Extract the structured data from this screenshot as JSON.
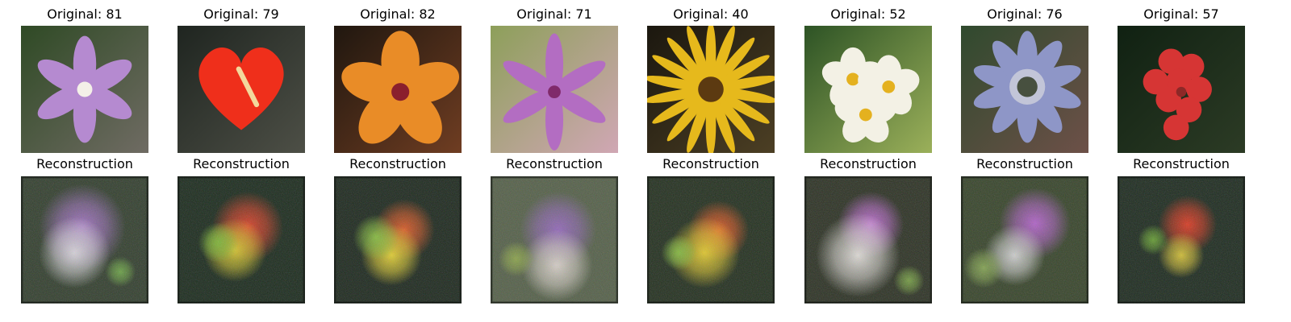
{
  "figure": {
    "columns": [
      {
        "original_title": "Original: 81",
        "recon_title": "Reconstruction",
        "original": {
          "bg": [
            "#2f4a25",
            "#6f6b63"
          ],
          "flower": "#b58ad0",
          "center": "#f4f0e8",
          "kind": "star6"
        },
        "recon": {
          "bg": "#344030",
          "blobs": [
            [
              "#a676c7",
              0.48,
              0.4,
              0.34
            ],
            [
              "#d9d6dc",
              0.42,
              0.6,
              0.28
            ],
            [
              "#6fa54a",
              0.78,
              0.75,
              0.12
            ]
          ]
        }
      },
      {
        "original_title": "Original: 79",
        "recon_title": "Reconstruction",
        "original": {
          "bg": [
            "#1f2520",
            "#4d4f46"
          ],
          "flower": "#ef2f1b",
          "center": "#f3d89c",
          "kind": "heart"
        },
        "recon": {
          "bg": "#1d2c1f",
          "blobs": [
            [
              "#e3442c",
              0.55,
              0.4,
              0.28
            ],
            [
              "#d8c831",
              0.45,
              0.58,
              0.25
            ],
            [
              "#7eb53b",
              0.32,
              0.52,
              0.16
            ]
          ]
        }
      },
      {
        "original_title": "Original: 82",
        "recon_title": "Reconstruction",
        "original": {
          "bg": [
            "#20170f",
            "#6f3d22"
          ],
          "flower": "#e98c27",
          "center": "#8a1f2d",
          "kind": "hibiscus"
        },
        "recon": {
          "bg": "#1f2a20",
          "blobs": [
            [
              "#e05d2a",
              0.55,
              0.42,
              0.24
            ],
            [
              "#e7d336",
              0.45,
              0.62,
              0.24
            ],
            [
              "#88bd43",
              0.33,
              0.48,
              0.18
            ]
          ]
        }
      },
      {
        "original_title": "Original: 71",
        "recon_title": "Reconstruction",
        "original": {
          "bg": [
            "#8d9f5a",
            "#d0a7b4"
          ],
          "flower": "#b36dc2",
          "center": "#802a6b",
          "kind": "lily"
        },
        "recon": {
          "bg": "#55604a",
          "blobs": [
            [
              "#9569bd",
              0.53,
              0.42,
              0.3
            ],
            [
              "#d9d1cb",
              0.52,
              0.7,
              0.28
            ],
            [
              "#8da54d",
              0.2,
              0.65,
              0.14
            ]
          ]
        }
      },
      {
        "original_title": "Original: 40",
        "recon_title": "Reconstruction",
        "original": {
          "bg": [
            "#1b170f",
            "#4c3f24"
          ],
          "flower": "#e6b91c",
          "center": "#5c3a11",
          "kind": "daisy"
        },
        "recon": {
          "bg": "#253121",
          "blobs": [
            [
              "#e45c28",
              0.56,
              0.43,
              0.24
            ],
            [
              "#e5cc31",
              0.45,
              0.6,
              0.28
            ],
            [
              "#86bb44",
              0.25,
              0.6,
              0.14
            ]
          ]
        }
      },
      {
        "original_title": "Original: 52",
        "recon_title": "Reconstruction",
        "original": {
          "bg": [
            "#2d5325",
            "#9bb05a"
          ],
          "flower": "#f3f1e5",
          "center": "#e4b11f",
          "kind": "primrose"
        },
        "recon": {
          "bg": "#2e3326",
          "blobs": [
            [
              "#c070d3",
              0.52,
              0.38,
              0.26
            ],
            [
              "#e4e0dd",
              0.42,
              0.62,
              0.33
            ],
            [
              "#79a148",
              0.82,
              0.82,
              0.12
            ]
          ]
        }
      },
      {
        "original_title": "Original: 76",
        "recon_title": "Reconstruction",
        "original": {
          "bg": [
            "#304a2e",
            "#6d5048"
          ],
          "flower": "#8e96c7",
          "center": "#47503f",
          "kind": "passion"
        },
        "recon": {
          "bg": "#38452c",
          "blobs": [
            [
              "#b665cf",
              0.58,
              0.37,
              0.28
            ],
            [
              "#d4d3d5",
              0.42,
              0.62,
              0.24
            ],
            [
              "#87a656",
              0.18,
              0.72,
              0.16
            ]
          ]
        }
      },
      {
        "original_title": "Original: 57",
        "recon_title": "Reconstruction",
        "original": {
          "bg": [
            "#102112",
            "#2c3b25"
          ],
          "flower": "#d63534",
          "center": "#8d2827",
          "kind": "cluster"
        },
        "recon": {
          "bg": "#1f2c21",
          "blobs": [
            [
              "#e03d26",
              0.55,
              0.38,
              0.23
            ],
            [
              "#d8c33a",
              0.5,
              0.62,
              0.18
            ],
            [
              "#6aa137",
              0.28,
              0.5,
              0.12
            ]
          ]
        }
      }
    ]
  }
}
